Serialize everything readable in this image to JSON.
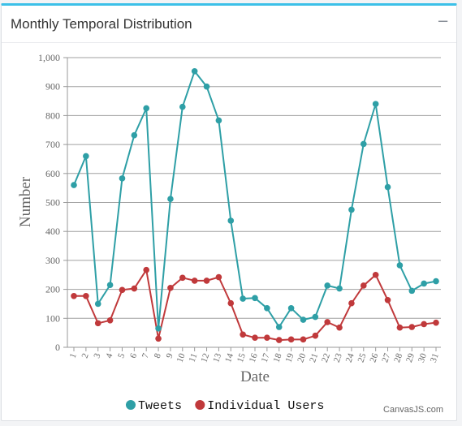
{
  "panel": {
    "title": "Monthly Temporal Distribution",
    "collapse_icon": "minus-icon",
    "collapse_symbol": "−"
  },
  "chart_data": {
    "type": "line",
    "xlabel": "Date",
    "ylabel": "Number",
    "ylim": [
      0,
      1000
    ],
    "yticks": [
      0,
      100,
      200,
      300,
      400,
      500,
      600,
      700,
      800,
      900,
      1000
    ],
    "ytick_labels": [
      "0",
      "100",
      "200",
      "300",
      "400",
      "500",
      "600",
      "700",
      "800",
      "900",
      "1,000"
    ],
    "categories": [
      "1",
      "2",
      "3",
      "4",
      "5",
      "6",
      "7",
      "8",
      "9",
      "10",
      "11",
      "12",
      "13",
      "14",
      "15",
      "16",
      "17",
      "18",
      "19",
      "20",
      "21",
      "22",
      "23",
      "24",
      "25",
      "26",
      "27",
      "28",
      "29",
      "30",
      "31"
    ],
    "grid": true,
    "legend_position": "bottom",
    "series": [
      {
        "name": "Tweets",
        "color": "#2e9fa6",
        "values": [
          560,
          660,
          150,
          215,
          583,
          732,
          825,
          65,
          512,
          830,
          953,
          900,
          783,
          437,
          168,
          170,
          135,
          70,
          135,
          95,
          105,
          213,
          203,
          475,
          702,
          840,
          553,
          283,
          195,
          220,
          228
        ]
      },
      {
        "name": "Individual Users",
        "color": "#c0393b",
        "values": [
          177,
          177,
          83,
          93,
          198,
          203,
          267,
          30,
          205,
          240,
          230,
          230,
          242,
          152,
          44,
          33,
          33,
          25,
          27,
          27,
          40,
          87,
          68,
          152,
          213,
          250,
          163,
          68,
          70,
          80,
          85
        ]
      }
    ]
  },
  "credit": "CanvasJS.com"
}
